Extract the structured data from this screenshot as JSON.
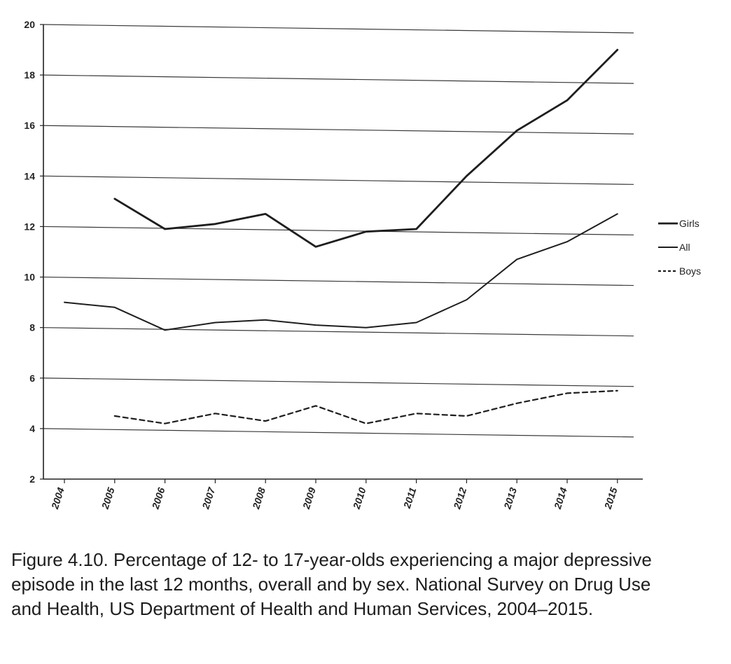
{
  "chart_data": {
    "type": "line",
    "categories": [
      "2004",
      "2005",
      "2006",
      "2007",
      "2008",
      "2009",
      "2010",
      "2011",
      "2012",
      "2013",
      "2014",
      "2015"
    ],
    "series": [
      {
        "name": "Girls",
        "style": "solid-thick",
        "color": "#1e1e1e",
        "values": [
          null,
          13.1,
          11.9,
          12.1,
          12.5,
          11.2,
          11.8,
          11.9,
          14.0,
          15.8,
          17.0,
          19.0
        ]
      },
      {
        "name": "All",
        "style": "solid",
        "color": "#1e1e1e",
        "values": [
          9.0,
          8.8,
          7.9,
          8.2,
          8.3,
          8.1,
          8.0,
          8.2,
          9.1,
          10.7,
          11.4,
          12.5
        ]
      },
      {
        "name": "Boys",
        "style": "dashed",
        "color": "#1e1e1e",
        "values": [
          null,
          4.5,
          4.2,
          4.6,
          4.3,
          4.9,
          4.2,
          4.6,
          4.5,
          5.0,
          5.4,
          5.5
        ]
      }
    ],
    "ylim": [
      2,
      20
    ],
    "yticks": [
      "2",
      "4",
      "6",
      "8",
      "10",
      "12",
      "14",
      "16",
      "18",
      "20"
    ],
    "grid": true,
    "legend_position": "right",
    "xlabel": "",
    "ylabel": ""
  },
  "caption": "Figure 4.10. Percentage of 12- to 17-year-olds experiencing a major depressive episode in the last 12 months, overall and by sex. National Survey on Drug Use and Health, US Department of Health and Human Services, 2004–2015."
}
